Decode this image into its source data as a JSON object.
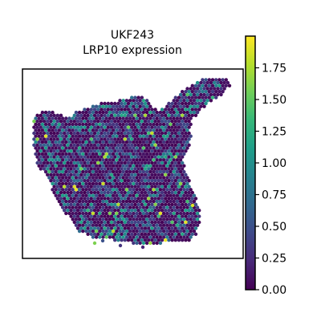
{
  "chart_data": {
    "type": "heatmap",
    "subtype": "spatial-spot-map",
    "title_lines": [
      "UKF243",
      "LRP10 expression"
    ],
    "colormap": "viridis",
    "colormap_stops": [
      "#440154",
      "#482878",
      "#3e4989",
      "#31688e",
      "#26828e",
      "#1f9e89",
      "#35b779",
      "#6ece58",
      "#b5de2b",
      "#fde725"
    ],
    "color_range": [
      0,
      2.0
    ],
    "colorbar": {
      "ticks": [
        0.0,
        0.25,
        0.5,
        0.75,
        1.0,
        1.25,
        1.5,
        1.75
      ],
      "tick_labels": [
        "0.00",
        "0.25",
        "0.50",
        "0.75",
        "1.00",
        "1.25",
        "1.50",
        "1.75"
      ],
      "placement": "right"
    },
    "axes_visible": false,
    "grid": false,
    "spot_value_distribution": {
      "zero_fraction": 0.55,
      "typical_nonzero": [
        0.3,
        1.2
      ],
      "max_observed": 1.95
    }
  }
}
